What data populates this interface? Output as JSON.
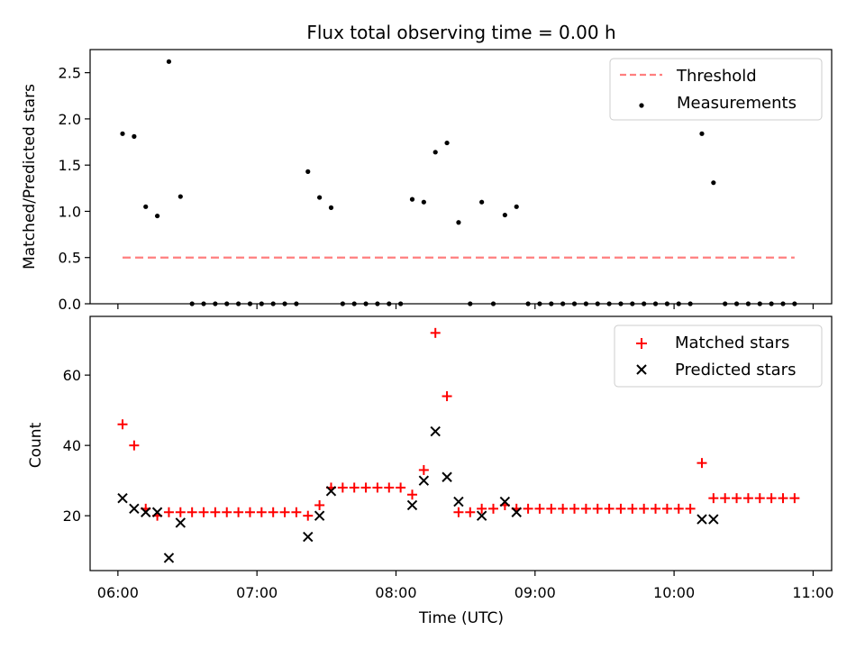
{
  "chart_data": [
    {
      "type": "scatter",
      "title": "Flux total observing time = 0.00 h",
      "xlabel": "",
      "ylabel": "Matched/Predicted stars",
      "xlim": [
        "05:48",
        "11:08"
      ],
      "ylim": [
        0,
        2.75
      ],
      "yticks": [
        0.0,
        0.5,
        1.0,
        1.5,
        2.0,
        2.5
      ],
      "ytick_labels": [
        "0.0",
        "0.5",
        "1.0",
        "1.5",
        "2.0",
        "2.5"
      ],
      "legend_position": "top-right",
      "grid": false,
      "threshold": {
        "label": "Threshold",
        "value": 0.5,
        "x_start": "06:02",
        "x_end": "10:52",
        "color": "#ff7f7f",
        "style": "dashed"
      },
      "series": [
        {
          "name": "Measurements",
          "color": "#000000",
          "marker": "dot",
          "points": [
            [
              "06:02",
              1.84
            ],
            [
              "06:07",
              1.81
            ],
            [
              "06:12",
              1.05
            ],
            [
              "06:17",
              0.95
            ],
            [
              "06:22",
              2.62
            ],
            [
              "06:27",
              1.16
            ],
            [
              "06:32",
              0.0
            ],
            [
              "06:37",
              0.0
            ],
            [
              "06:42",
              0.0
            ],
            [
              "06:47",
              0.0
            ],
            [
              "06:52",
              0.0
            ],
            [
              "06:57",
              0.0
            ],
            [
              "07:02",
              0.0
            ],
            [
              "07:07",
              0.0
            ],
            [
              "07:12",
              0.0
            ],
            [
              "07:17",
              0.0
            ],
            [
              "07:22",
              1.43
            ],
            [
              "07:27",
              1.15
            ],
            [
              "07:32",
              1.04
            ],
            [
              "07:37",
              0.0
            ],
            [
              "07:42",
              0.0
            ],
            [
              "07:47",
              0.0
            ],
            [
              "07:52",
              0.0
            ],
            [
              "07:57",
              0.0
            ],
            [
              "08:02",
              0.0
            ],
            [
              "08:07",
              1.13
            ],
            [
              "08:12",
              1.1
            ],
            [
              "08:17",
              1.64
            ],
            [
              "08:22",
              1.74
            ],
            [
              "08:27",
              0.88
            ],
            [
              "08:32",
              0.0
            ],
            [
              "08:37",
              1.1
            ],
            [
              "08:42",
              0.0
            ],
            [
              "08:47",
              0.96
            ],
            [
              "08:52",
              1.05
            ],
            [
              "08:57",
              0.0
            ],
            [
              "09:02",
              0.0
            ],
            [
              "09:07",
              0.0
            ],
            [
              "09:12",
              0.0
            ],
            [
              "09:17",
              0.0
            ],
            [
              "09:22",
              0.0
            ],
            [
              "09:27",
              0.0
            ],
            [
              "09:32",
              0.0
            ],
            [
              "09:37",
              0.0
            ],
            [
              "09:42",
              0.0
            ],
            [
              "09:47",
              0.0
            ],
            [
              "09:52",
              0.0
            ],
            [
              "09:57",
              0.0
            ],
            [
              "10:02",
              0.0
            ],
            [
              "10:07",
              0.0
            ],
            [
              "10:12",
              1.84
            ],
            [
              "10:17",
              1.31
            ],
            [
              "10:22",
              0.0
            ],
            [
              "10:27",
              0.0
            ],
            [
              "10:32",
              0.0
            ],
            [
              "10:37",
              0.0
            ],
            [
              "10:42",
              0.0
            ],
            [
              "10:47",
              0.0
            ],
            [
              "10:52",
              0.0
            ]
          ]
        }
      ]
    },
    {
      "type": "scatter",
      "title": "",
      "xlabel": "Time (UTC)",
      "ylabel": "Count",
      "xlim": [
        "05:48",
        "11:08"
      ],
      "ylim": [
        4.4,
        76.7
      ],
      "yticks": [
        20,
        40,
        60
      ],
      "ytick_labels": [
        "20",
        "40",
        "60"
      ],
      "xticks": [
        "06:00",
        "07:00",
        "08:00",
        "09:00",
        "10:00",
        "11:00"
      ],
      "xtick_labels": [
        "06:00",
        "07:00",
        "08:00",
        "09:00",
        "10:00",
        "11:00"
      ],
      "legend_position": "top-right",
      "grid": false,
      "series": [
        {
          "name": "Matched stars",
          "color": "#ff0000",
          "marker": "plus",
          "points": [
            [
              "06:02",
              46
            ],
            [
              "06:07",
              40
            ],
            [
              "06:12",
              22
            ],
            [
              "06:17",
              20
            ],
            [
              "06:22",
              21
            ],
            [
              "06:27",
              21
            ],
            [
              "06:32",
              21
            ],
            [
              "06:37",
              21
            ],
            [
              "06:42",
              21
            ],
            [
              "06:47",
              21
            ],
            [
              "06:52",
              21
            ],
            [
              "06:57",
              21
            ],
            [
              "07:02",
              21
            ],
            [
              "07:07",
              21
            ],
            [
              "07:12",
              21
            ],
            [
              "07:17",
              21
            ],
            [
              "07:22",
              20
            ],
            [
              "07:27",
              23
            ],
            [
              "07:32",
              28
            ],
            [
              "07:37",
              28
            ],
            [
              "07:42",
              28
            ],
            [
              "07:47",
              28
            ],
            [
              "07:52",
              28
            ],
            [
              "07:57",
              28
            ],
            [
              "08:02",
              28
            ],
            [
              "08:07",
              26
            ],
            [
              "08:12",
              33
            ],
            [
              "08:17",
              72
            ],
            [
              "08:22",
              54
            ],
            [
              "08:27",
              21
            ],
            [
              "08:32",
              21
            ],
            [
              "08:37",
              22
            ],
            [
              "08:42",
              22
            ],
            [
              "08:47",
              23
            ],
            [
              "08:52",
              22
            ],
            [
              "08:57",
              22
            ],
            [
              "09:02",
              22
            ],
            [
              "09:07",
              22
            ],
            [
              "09:12",
              22
            ],
            [
              "09:17",
              22
            ],
            [
              "09:22",
              22
            ],
            [
              "09:27",
              22
            ],
            [
              "09:32",
              22
            ],
            [
              "09:37",
              22
            ],
            [
              "09:42",
              22
            ],
            [
              "09:47",
              22
            ],
            [
              "09:52",
              22
            ],
            [
              "09:57",
              22
            ],
            [
              "10:02",
              22
            ],
            [
              "10:07",
              22
            ],
            [
              "10:12",
              35
            ],
            [
              "10:17",
              25
            ],
            [
              "10:22",
              25
            ],
            [
              "10:27",
              25
            ],
            [
              "10:32",
              25
            ],
            [
              "10:37",
              25
            ],
            [
              "10:42",
              25
            ],
            [
              "10:47",
              25
            ],
            [
              "10:52",
              25
            ]
          ]
        },
        {
          "name": "Predicted stars",
          "color": "#000000",
          "marker": "x",
          "points": [
            [
              "06:02",
              25
            ],
            [
              "06:07",
              22
            ],
            [
              "06:12",
              21
            ],
            [
              "06:17",
              21
            ],
            [
              "06:22",
              8
            ],
            [
              "06:27",
              18
            ],
            [
              "07:22",
              14
            ],
            [
              "07:27",
              20
            ],
            [
              "07:32",
              27
            ],
            [
              "08:07",
              23
            ],
            [
              "08:12",
              30
            ],
            [
              "08:17",
              44
            ],
            [
              "08:22",
              31
            ],
            [
              "08:27",
              24
            ],
            [
              "08:37",
              20
            ],
            [
              "08:47",
              24
            ],
            [
              "08:52",
              21
            ],
            [
              "10:12",
              19
            ],
            [
              "10:17",
              19
            ]
          ]
        }
      ]
    }
  ]
}
